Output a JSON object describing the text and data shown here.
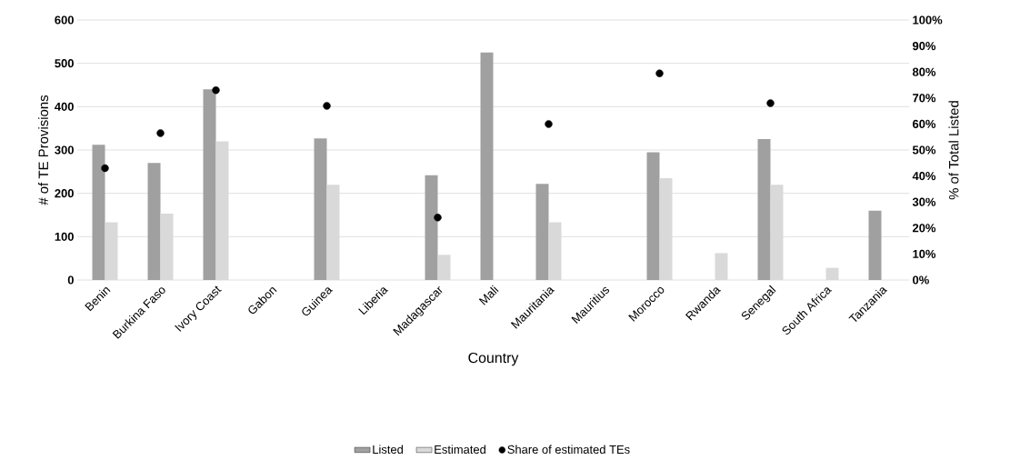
{
  "chart_data": {
    "type": "bar",
    "categories": [
      "Benin",
      "Burkina Faso",
      "Ivory Coast",
      "Gabon",
      "Guinea",
      "Liberia",
      "Madagascar",
      "Mali",
      "Mauritania",
      "Mauritius",
      "Morocco",
      "Rwanda",
      "Senegal",
      "South Africa",
      "Tanzania"
    ],
    "series": [
      {
        "name": "Listed",
        "color": "#a0a0a0",
        "values": [
          312,
          270,
          440,
          null,
          327,
          null,
          242,
          525,
          222,
          null,
          295,
          null,
          325,
          null,
          160
        ]
      },
      {
        "name": "Estimated",
        "color": "#d9d9d9",
        "values": [
          133,
          153,
          320,
          null,
          220,
          null,
          58,
          null,
          133,
          null,
          235,
          62,
          220,
          28,
          null
        ]
      },
      {
        "name": "Share of estimated TEs",
        "type": "scatter",
        "axis": "y2",
        "color": "#000000",
        "values": [
          43,
          56.5,
          73,
          null,
          67,
          null,
          24,
          null,
          60,
          null,
          79.5,
          null,
          68,
          null,
          null
        ]
      }
    ],
    "xlabel": "Country",
    "ylabel": "# of TE Provisions",
    "y2label": "% of Total Listed",
    "ylim": [
      0,
      600
    ],
    "yticks": [
      0,
      100,
      200,
      300,
      400,
      500,
      600
    ],
    "y2lim": [
      0,
      100
    ],
    "y2ticks": [
      {
        "value": 0,
        "label": "0%"
      },
      {
        "value": 10,
        "label": "10%"
      },
      {
        "value": 20,
        "label": "20%"
      },
      {
        "value": 30,
        "label": "30%"
      },
      {
        "value": 40,
        "label": "40%"
      },
      {
        "value": 50,
        "label": "50%"
      },
      {
        "value": 60,
        "label": "60%"
      },
      {
        "value": 70,
        "label": "70%"
      },
      {
        "value": 80,
        "label": "80%"
      },
      {
        "value": 90,
        "label": "90%"
      },
      {
        "value": 100,
        "label": "100%"
      }
    ],
    "grid": "y",
    "legend": "bottom"
  }
}
